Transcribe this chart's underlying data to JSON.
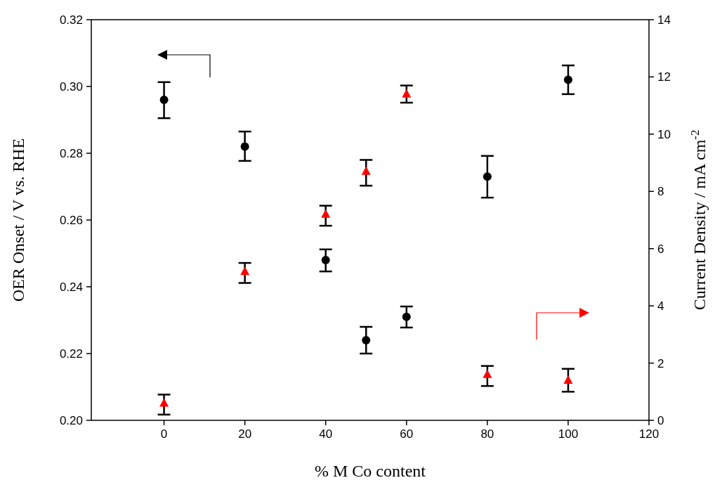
{
  "chart_data": {
    "type": "scatter",
    "xlabel": "% M Co content",
    "ylabel": "OER Onset / V vs. RHE",
    "y2label": "Current Density / mA cm$^{-2}$",
    "xlim": [
      -18,
      120
    ],
    "xticks": [
      0,
      20,
      40,
      60,
      80,
      100,
      120
    ],
    "ylim": [
      0.2,
      0.32
    ],
    "yticks": [
      {
        "value": 0.2,
        "label": "0.20"
      },
      0.22,
      0.24,
      0.26,
      0.28,
      {
        "value": 0.3,
        "label": "0.30"
      },
      0.32
    ],
    "y2lim": [
      0,
      14
    ],
    "y2ticks": [
      0,
      2,
      4,
      6,
      8,
      10,
      12,
      14
    ],
    "grid": false,
    "series": [
      {
        "color": "#000000",
        "marker": "circle",
        "x": [
          0,
          20,
          40,
          50,
          60,
          80,
          100
        ],
        "values": [
          0.296,
          0.282,
          0.248,
          0.224,
          0.231,
          0.273,
          0.302
        ],
        "errors": [
          [
            0.2905,
            0.3013
          ],
          [
            0.2777,
            0.2865
          ],
          [
            0.2446,
            0.2512
          ],
          [
            0.22,
            0.228
          ],
          [
            0.2278,
            0.2341
          ],
          [
            0.2667,
            0.2792
          ],
          [
            0.2977,
            0.3063
          ]
        ]
      },
      {
        "color": "#ff0000",
        "marker": "triangle",
        "axis": "y2",
        "x": [
          0,
          20,
          40,
          50,
          60,
          80,
          100
        ],
        "values": [
          0.6,
          5.2,
          7.2,
          8.7,
          11.4,
          1.6,
          1.4
        ],
        "errors": [
          [
            0.2,
            0.9
          ],
          [
            4.8,
            5.5
          ],
          [
            6.8,
            7.5
          ],
          [
            8.2,
            9.1
          ],
          [
            11.1,
            11.7
          ],
          [
            1.2,
            1.9
          ],
          [
            1.0,
            1.8
          ]
        ]
      }
    ]
  }
}
